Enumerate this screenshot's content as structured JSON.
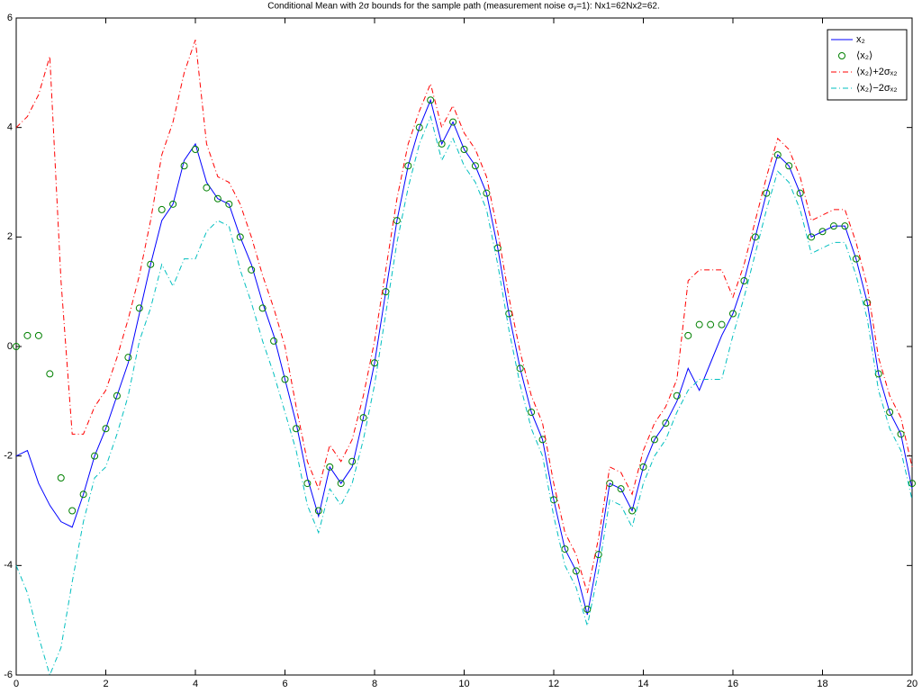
{
  "chart_data": {
    "type": "line",
    "title": "Conditional Mean with 2σ bounds for the sample path (measurement noise σᵧ=1): Nx1=62Nx2=62.",
    "x": [
      0,
      0.25,
      0.5,
      0.75,
      1,
      1.25,
      1.5,
      1.75,
      2,
      2.25,
      2.5,
      2.75,
      3,
      3.25,
      3.5,
      3.75,
      4,
      4.25,
      4.5,
      4.75,
      5,
      5.25,
      5.5,
      5.75,
      6,
      6.25,
      6.5,
      6.75,
      7,
      7.25,
      7.5,
      7.75,
      8,
      8.25,
      8.5,
      8.75,
      9,
      9.25,
      9.5,
      9.75,
      10,
      10.25,
      10.5,
      10.75,
      11,
      11.25,
      11.5,
      11.75,
      12,
      12.25,
      12.5,
      12.75,
      13,
      13.25,
      13.5,
      13.75,
      14,
      14.25,
      14.5,
      14.75,
      15,
      15.25,
      15.5,
      15.75,
      16,
      16.25,
      16.5,
      16.75,
      17,
      17.25,
      17.5,
      17.75,
      18,
      18.25,
      18.5,
      18.75,
      19,
      19.25,
      19.5,
      19.75,
      20
    ],
    "series": [
      {
        "name": "x₂",
        "color": "#0000ff",
        "style": "solid",
        "values": [
          -2,
          -1.9,
          -2.5,
          -2.9,
          -3.2,
          -3.3,
          -2.7,
          -2.0,
          -1.5,
          -0.9,
          -0.3,
          0.6,
          1.5,
          2.3,
          2.6,
          3.4,
          3.7,
          3.0,
          2.7,
          2.6,
          2.0,
          1.5,
          0.8,
          0.2,
          -0.6,
          -1.4,
          -2.4,
          -3.1,
          -2.2,
          -2.5,
          -2.2,
          -1.3,
          -0.3,
          1.0,
          2.3,
          3.3,
          4.0,
          4.5,
          3.7,
          4.1,
          3.6,
          3.3,
          2.8,
          1.8,
          0.6,
          -0.4,
          -1.2,
          -1.7,
          -2.8,
          -3.7,
          -4.1,
          -4.9,
          -3.8,
          -2.5,
          -2.6,
          -3.0,
          -2.2,
          -1.7,
          -1.4,
          -1.0,
          -0.4,
          -0.8,
          -0.3,
          0.2,
          0.6,
          1.2,
          2.0,
          2.8,
          3.5,
          3.3,
          2.8,
          2.0,
          2.1,
          2.2,
          2.2,
          1.6,
          0.8,
          -0.5,
          -1.2,
          -1.6,
          -2.6
        ]
      },
      {
        "name": "⟨x₂⟩",
        "color": "#008000",
        "style": "marker",
        "values": [
          0,
          0.2,
          0.2,
          -0.5,
          -2.4,
          -3.0,
          -2.7,
          -2.0,
          -1.5,
          -0.9,
          -0.2,
          0.7,
          1.5,
          2.5,
          2.6,
          3.3,
          3.6,
          2.9,
          2.7,
          2.6,
          2.0,
          1.4,
          0.7,
          0.1,
          -0.6,
          -1.5,
          -2.5,
          -3.0,
          -2.2,
          -2.5,
          -2.1,
          -1.3,
          -0.3,
          1.0,
          2.3,
          3.3,
          4.0,
          4.5,
          3.7,
          4.1,
          3.6,
          3.3,
          2.8,
          1.8,
          0.6,
          -0.4,
          -1.2,
          -1.7,
          -2.8,
          -3.7,
          -4.1,
          -4.8,
          -3.8,
          -2.5,
          -2.6,
          -3.0,
          -2.2,
          -1.7,
          -1.4,
          -0.9,
          0.2,
          0.4,
          0.4,
          0.4,
          0.6,
          1.2,
          2.0,
          2.8,
          3.5,
          3.3,
          2.8,
          2.0,
          2.1,
          2.2,
          2.2,
          1.6,
          0.8,
          -0.5,
          -1.2,
          -1.6,
          -2.5
        ]
      },
      {
        "name": "⟨x₂⟩+2σₓ₂",
        "color": "#ff0000",
        "style": "dashdot",
        "values": [
          4.0,
          4.2,
          4.6,
          5.3,
          1.2,
          -1.6,
          -1.6,
          -1.1,
          -0.8,
          -0.2,
          0.5,
          1.3,
          2.3,
          3.5,
          4.1,
          5.0,
          5.6,
          3.7,
          3.1,
          3.0,
          2.6,
          2.0,
          1.3,
          0.7,
          0.0,
          -1.1,
          -2.1,
          -2.6,
          -1.8,
          -2.1,
          -1.7,
          -0.9,
          0.1,
          1.4,
          2.7,
          3.7,
          4.3,
          4.8,
          4.0,
          4.4,
          3.9,
          3.6,
          3.1,
          2.1,
          0.9,
          -0.1,
          -0.9,
          -1.4,
          -2.5,
          -3.4,
          -3.8,
          -4.5,
          -3.5,
          -2.2,
          -2.3,
          -2.7,
          -1.9,
          -1.4,
          -1.1,
          -0.6,
          1.2,
          1.4,
          1.4,
          1.4,
          0.9,
          1.5,
          2.3,
          3.1,
          3.8,
          3.6,
          3.1,
          2.3,
          2.4,
          2.5,
          2.5,
          1.9,
          1.1,
          -0.2,
          -0.9,
          -1.3,
          -2.2
        ]
      },
      {
        "name": "⟨x₂⟩−2σₓ₂",
        "color": "#00bfbf",
        "style": "dashdot",
        "values": [
          -4.0,
          -4.5,
          -5.3,
          -6.0,
          -5.5,
          -4.3,
          -3.2,
          -2.4,
          -2.2,
          -1.6,
          -0.9,
          0.1,
          0.7,
          1.5,
          1.1,
          1.6,
          1.6,
          2.1,
          2.3,
          2.2,
          1.4,
          0.8,
          0.1,
          -0.5,
          -1.2,
          -1.9,
          -2.9,
          -3.4,
          -2.6,
          -2.9,
          -2.5,
          -1.7,
          -0.7,
          0.6,
          1.9,
          2.9,
          3.7,
          4.2,
          3.4,
          3.8,
          3.3,
          3.0,
          2.5,
          1.5,
          0.3,
          -0.7,
          -1.5,
          -2.0,
          -3.1,
          -4.0,
          -4.4,
          -5.1,
          -4.1,
          -2.8,
          -2.9,
          -3.3,
          -2.5,
          -2.0,
          -1.7,
          -1.2,
          -0.8,
          -0.6,
          -0.6,
          -0.6,
          0.2,
          0.9,
          1.7,
          2.5,
          3.2,
          3.0,
          2.5,
          1.7,
          1.8,
          1.9,
          1.9,
          1.3,
          0.5,
          -0.8,
          -1.5,
          -1.9,
          -2.8
        ]
      }
    ],
    "xlim": [
      0,
      20
    ],
    "xticks": [
      0,
      2,
      4,
      6,
      8,
      10,
      12,
      14,
      16,
      18,
      20
    ],
    "ylim": [
      -6,
      6
    ],
    "yticks": [
      -6,
      -4,
      -2,
      0,
      2,
      4,
      6
    ],
    "grid": false,
    "legend": "upper right"
  }
}
